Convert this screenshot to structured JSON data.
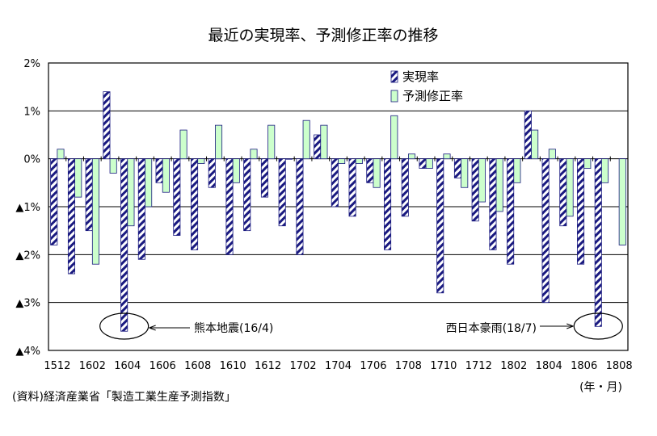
{
  "chart_data": {
    "type": "bar",
    "title": "最近の実現率、予測修正率の推移",
    "categories": [
      "1512",
      "1601",
      "1602",
      "1603",
      "1604",
      "1605",
      "1606",
      "1607",
      "1608",
      "1609",
      "1610",
      "1611",
      "1612",
      "1701",
      "1702",
      "1703",
      "1704",
      "1705",
      "1706",
      "1707",
      "1708",
      "1709",
      "1710",
      "1711",
      "1712",
      "1801",
      "1802",
      "1803",
      "1804",
      "1805",
      "1806",
      "1807",
      "1808"
    ],
    "tick_labels": [
      "1512",
      "1602",
      "1604",
      "1606",
      "1608",
      "1610",
      "1612",
      "1702",
      "1704",
      "1706",
      "1708",
      "1710",
      "1712",
      "1802",
      "1804",
      "1806",
      "1808"
    ],
    "y_tick_labels": [
      "2%",
      "1%",
      "0%",
      "▲1%",
      "▲2%",
      "▲3%",
      "▲4%"
    ],
    "y_ticks": [
      2,
      1,
      0,
      -1,
      -2,
      -3,
      -4
    ],
    "ylim": [
      -4,
      2
    ],
    "grid": true,
    "legend_position": "top-right",
    "series": [
      {
        "name": "実現率",
        "pattern": "diagonal-hatch",
        "color": "#1a1a80",
        "values": [
          -1.8,
          -2.4,
          -1.5,
          1.4,
          -3.6,
          -2.1,
          -0.5,
          -1.6,
          -1.9,
          -0.6,
          -2.0,
          -1.5,
          -0.8,
          -1.4,
          -2.0,
          0.5,
          -1.0,
          -1.2,
          -0.5,
          -1.9,
          -1.2,
          -0.2,
          -2.8,
          -0.4,
          -1.3,
          -1.9,
          -2.2,
          1.0,
          -3.0,
          -1.4,
          -2.2,
          -3.5,
          null
        ]
      },
      {
        "name": "予測修正率",
        "pattern": "solid",
        "color": "#ccffcc",
        "values": [
          0.2,
          -0.8,
          -2.2,
          -0.3,
          -1.4,
          -1.0,
          -0.7,
          0.6,
          -0.1,
          0.7,
          -0.5,
          0.2,
          0.7,
          0.0,
          0.8,
          0.7,
          -0.1,
          -0.1,
          -0.6,
          0.9,
          0.1,
          -0.2,
          0.1,
          -0.6,
          -0.9,
          -1.1,
          -0.5,
          0.6,
          0.2,
          -1.2,
          -0.2,
          -0.5,
          -1.8
        ]
      }
    ],
    "annotations": [
      {
        "text": "熊本地震(16/4)",
        "category": "1604",
        "series": "実現率"
      },
      {
        "text": "西日本豪雨(18/7)",
        "category": "1807",
        "series": "実現率"
      }
    ]
  },
  "source_note": "(資料)経済産業省「製造工業生産予測指数」",
  "unit_label": "(年・月)"
}
